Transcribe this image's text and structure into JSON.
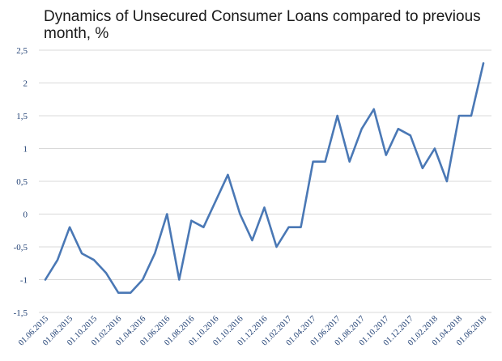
{
  "chart_data": {
    "type": "line",
    "title": "Dynamics of Unsecured Consumer Loans compared to previous month, %",
    "xlabel": "",
    "ylabel": "",
    "ylim": [
      -1.5,
      2.5
    ],
    "yticks": [
      -1.5,
      -1,
      -0.5,
      0,
      0.5,
      1,
      1.5,
      2,
      2.5
    ],
    "ytick_labels": [
      "-1,5",
      "-1",
      "-0,5",
      "0",
      "0,5",
      "1",
      "1,5",
      "2",
      "2,5"
    ],
    "grid": true,
    "legend": "none",
    "color": "#4a78b5",
    "x": [
      "01.06.2015",
      "01.07.2015",
      "01.08.2015",
      "01.09.2015",
      "01.10.2015",
      "01.11.2015",
      "01.12.2015",
      "01.01.2016",
      "01.02.2016",
      "01.03.2016",
      "01.04.2016",
      "01.05.2016",
      "01.06.2016",
      "01.07.2016",
      "01.08.2016",
      "01.09.2016",
      "01.10.2016",
      "01.11.2016",
      "01.12.2016",
      "01.01.2017",
      "01.02.2017",
      "01.03.2017",
      "01.04.2017",
      "01.05.2017",
      "01.06.2017",
      "01.07.2017",
      "01.08.2017",
      "01.09.2017",
      "01.10.2017",
      "01.11.2017",
      "01.12.2017",
      "01.01.2018",
      "01.02.2018",
      "01.03.2018",
      "01.04.2018",
      "01.05.2018",
      "01.06.2018"
    ],
    "x_tick_labels": [
      "01.06.2015",
      "01.08.2015",
      "01.10.2015",
      "01.02.2016",
      "01.04.2016",
      "01.06.2016",
      "01.08.2016",
      "01.10.2016",
      "01.10.2016",
      "01.12.2016",
      "01.02.2017",
      "01.04.2017",
      "01.06.2017",
      "01.08.2017",
      "01.10.2017",
      "01.12.2017",
      "01.02.2018",
      "01.04.2018",
      "01.06.2018"
    ],
    "values": [
      -1.0,
      -0.7,
      -0.2,
      -0.6,
      -0.7,
      -0.9,
      -1.2,
      -1.2,
      -1.0,
      -0.6,
      0.0,
      -1.0,
      -0.1,
      -0.2,
      0.2,
      0.6,
      0.0,
      -0.4,
      0.1,
      -0.5,
      -0.2,
      -0.2,
      0.8,
      0.8,
      1.5,
      0.8,
      1.3,
      1.6,
      0.9,
      1.3,
      1.2,
      0.7,
      1.0,
      0.5,
      1.5,
      1.5,
      2.3
    ]
  }
}
